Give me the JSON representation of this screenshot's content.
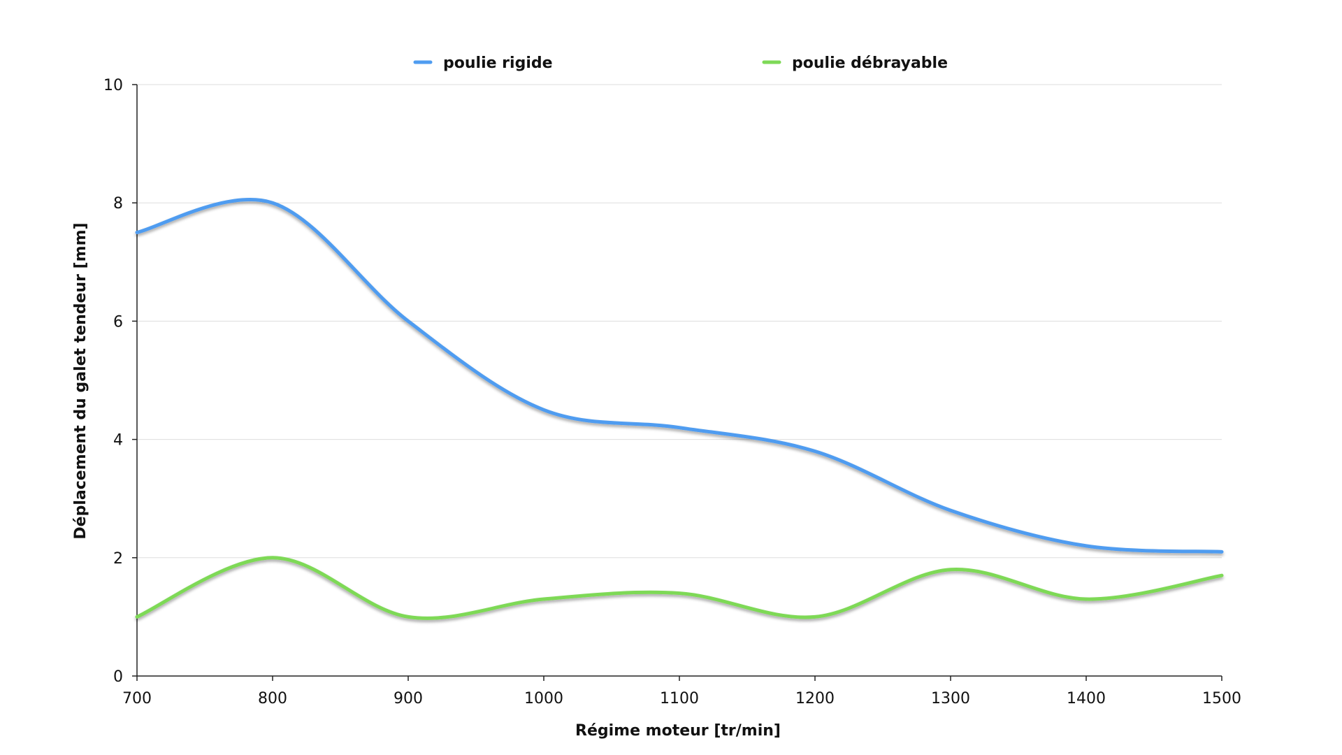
{
  "chart_data": {
    "type": "line",
    "title": "",
    "xlabel": "Régime moteur [tr/min]",
    "ylabel": "Déplacement du galet tendeur [mm]",
    "x": [
      700,
      800,
      900,
      1000,
      1100,
      1200,
      1300,
      1400,
      1500
    ],
    "xlim": [
      700,
      1500
    ],
    "ylim": [
      0,
      10
    ],
    "x_ticks": [
      "700",
      "800",
      "900",
      "1000",
      "1100",
      "1200",
      "1300",
      "1400",
      "1500"
    ],
    "y_ticks": [
      "0",
      "2",
      "4",
      "6",
      "8",
      "10"
    ],
    "grid": "horizontal",
    "legend_position": "top",
    "series": [
      {
        "name": "poulie rigide",
        "color": "#4f9cf0",
        "values": [
          7.5,
          8.0,
          6.0,
          4.5,
          4.2,
          3.8,
          2.8,
          2.2,
          2.1
        ]
      },
      {
        "name": "poulie débrayable",
        "color": "#7ed957",
        "values": [
          1.0,
          2.0,
          1.0,
          1.3,
          1.4,
          1.0,
          1.8,
          1.3,
          1.7
        ]
      }
    ]
  }
}
